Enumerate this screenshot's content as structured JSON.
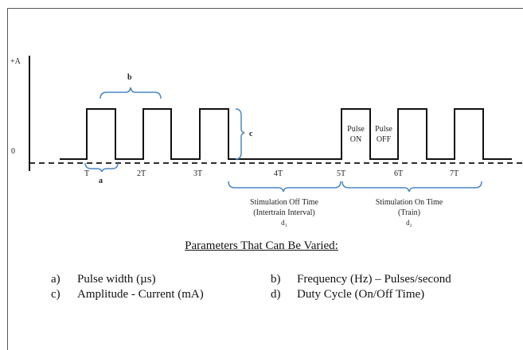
{
  "axis": {
    "plus_label": "+A",
    "zero_label": "0"
  },
  "time_labels": [
    "T",
    "2T",
    "3T",
    "4T",
    "5T",
    "6T",
    "7T"
  ],
  "brackets": {
    "a": "a",
    "b": "b",
    "c": "c"
  },
  "pulse_labels": {
    "on_1": "Pulse",
    "on_2": "ON",
    "off_1": "Pulse",
    "off_2": "OFF"
  },
  "off_time": {
    "line1": "Stimulation Off Time",
    "line2": "(Intertrain Interval)",
    "line3": "d₁"
  },
  "on_time": {
    "line1": "Stimulation On Time",
    "line2": "(Train)",
    "line3": "d₂"
  },
  "params_title": "Parameters That Can Be Varied:",
  "params": [
    {
      "key": "a)",
      "text": "Pulse width (µs)"
    },
    {
      "key": "b)",
      "text": "Frequency (Hz) – Pulses/second"
    },
    {
      "key": "c)",
      "text": "Amplitude - Current (mA)"
    },
    {
      "key": "d)",
      "text": "Duty Cycle (On/Off Time)"
    }
  ]
}
